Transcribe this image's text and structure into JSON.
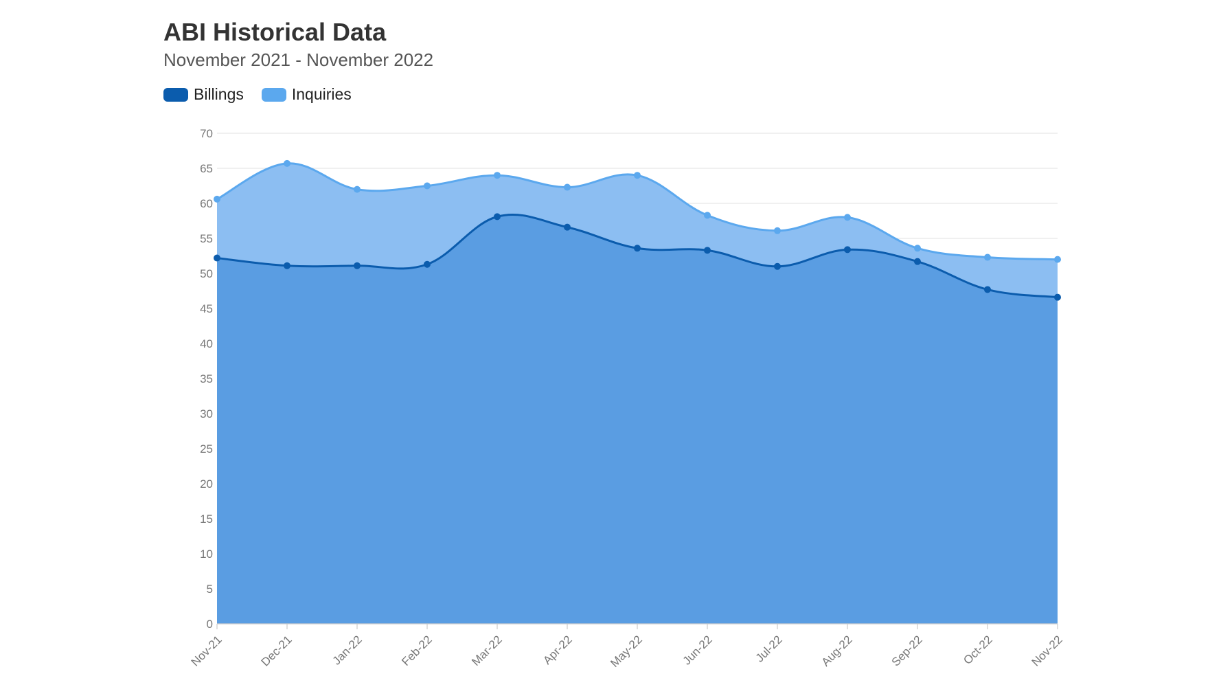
{
  "chart_data": {
    "type": "area",
    "title": "ABI Historical Data",
    "subtitle": "November 2021 - November 2022",
    "categories": [
      "Nov-21",
      "Dec-21",
      "Jan-22",
      "Feb-22",
      "Mar-22",
      "Apr-22",
      "May-22",
      "Jun-22",
      "Jul-22",
      "Aug-22",
      "Sep-22",
      "Oct-22",
      "Nov-22"
    ],
    "series": [
      {
        "name": "Billings",
        "color": "#0b5cad",
        "values": [
          52.2,
          51.1,
          51.1,
          51.3,
          58.1,
          56.6,
          53.6,
          53.3,
          51.0,
          53.4,
          51.7,
          47.7,
          46.6
        ]
      },
      {
        "name": "Inquiries",
        "color": "#5ba8ee",
        "values": [
          60.6,
          65.7,
          62.0,
          62.5,
          64.0,
          62.3,
          64.0,
          58.3,
          56.1,
          58.0,
          53.6,
          52.3,
          52.0
        ]
      }
    ],
    "ylim": [
      0,
      70
    ],
    "yticks": [
      0,
      5,
      10,
      15,
      20,
      25,
      30,
      35,
      40,
      45,
      50,
      55,
      60,
      65,
      70
    ],
    "xlabel": "",
    "ylabel": "",
    "grid": true,
    "legend_position": "top-left"
  },
  "colors": {
    "billings_fill": "#5a9de2",
    "inquiries_fill": "#8cbef2",
    "grid": "#e6e6e6"
  }
}
